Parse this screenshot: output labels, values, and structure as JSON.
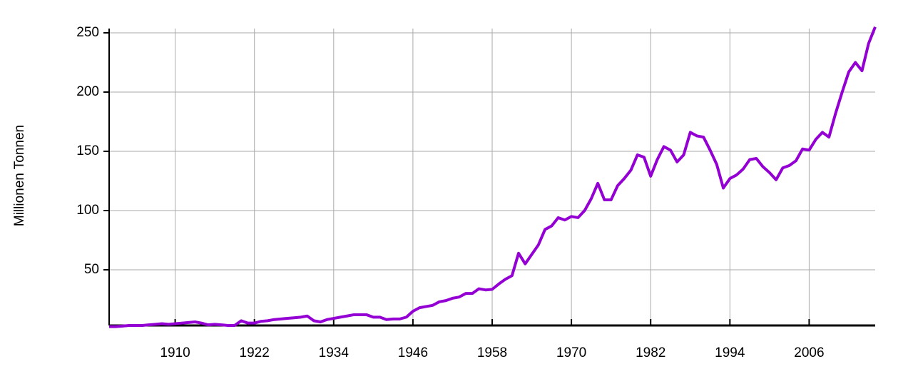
{
  "chart_data": {
    "type": "line",
    "y_label": "Millionen Tonnen",
    "x": [
      1900,
      1901,
      1902,
      1903,
      1904,
      1905,
      1906,
      1907,
      1908,
      1909,
      1910,
      1911,
      1912,
      1913,
      1914,
      1915,
      1916,
      1917,
      1918,
      1919,
      1920,
      1921,
      1922,
      1923,
      1924,
      1925,
      1926,
      1927,
      1928,
      1929,
      1930,
      1931,
      1932,
      1933,
      1934,
      1935,
      1936,
      1937,
      1938,
      1939,
      1940,
      1941,
      1942,
      1943,
      1944,
      1945,
      1946,
      1947,
      1948,
      1949,
      1950,
      1951,
      1952,
      1953,
      1954,
      1955,
      1956,
      1957,
      1958,
      1959,
      1960,
      1961,
      1962,
      1963,
      1964,
      1965,
      1966,
      1967,
      1968,
      1969,
      1970,
      1971,
      1972,
      1973,
      1974,
      1975,
      1976,
      1977,
      1978,
      1979,
      1980,
      1981,
      1982,
      1983,
      1984,
      1985,
      1986,
      1987,
      1988,
      1989,
      1990,
      1991,
      1992,
      1993,
      1994,
      1995,
      1996,
      1997,
      1998,
      1999,
      2000,
      2001,
      2002,
      2003,
      2004,
      2005,
      2006,
      2007,
      2008,
      2009,
      2010,
      2011,
      2012,
      2013,
      2014,
      2015,
      2016
    ],
    "series": [
      {
        "color": "#9400d3",
        "values": [
          2,
          2,
          2.5,
          3,
          3,
          3,
          3.5,
          4,
          4.5,
          4,
          4.5,
          5,
          5.5,
          6,
          5,
          3.5,
          4,
          3.5,
          3,
          3,
          7,
          5,
          5,
          6.5,
          7,
          8,
          8.5,
          9,
          9.5,
          10,
          11,
          7,
          6,
          8,
          9,
          10,
          11,
          12,
          12,
          12,
          10,
          10,
          8,
          8.5,
          8.5,
          10,
          15,
          18,
          19,
          20,
          23,
          24,
          26,
          27,
          30,
          30,
          34,
          33,
          33.5,
          38,
          42,
          45,
          64,
          55,
          63,
          71,
          84,
          87,
          94,
          92,
          95,
          94,
          100,
          110,
          123,
          109,
          109,
          121,
          127,
          134,
          147,
          145,
          129,
          143,
          154,
          151,
          141,
          147,
          166,
          163,
          162,
          151,
          139,
          119,
          127,
          130,
          135,
          143,
          144,
          137,
          132,
          126,
          136,
          138,
          142,
          152,
          151,
          160,
          166,
          162,
          182,
          200,
          217,
          225,
          218,
          241,
          255
        ]
      }
    ],
    "xlim": [
      1900,
      2016
    ],
    "xticks": [
      1910,
      1922,
      1934,
      1946,
      1958,
      1970,
      1982,
      1994,
      2006
    ],
    "ylim": [
      3,
      250
    ],
    "yticks": [
      50,
      100,
      150,
      200,
      250
    ],
    "grid": true
  }
}
